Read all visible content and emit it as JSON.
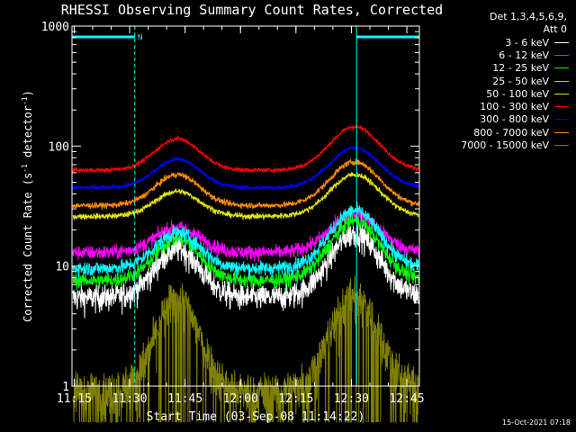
{
  "chart_data": {
    "type": "line",
    "title": "RHESSI Observing Summary Count Rates, Corrected",
    "xlabel": "Start Time (03-Sep-08 11:14:22)",
    "ylabel_main": "Corrected Count Rate (s",
    "ylabel_exp1": "-1",
    "ylabel_mid": " detector",
    "ylabel_exp2": "-1",
    "ylabel_end": ")",
    "ylog": true,
    "ylim": [
      1,
      1000
    ],
    "xlim_min": [
      0,
      94
    ],
    "x_ticks": [
      {
        "min": 0.6,
        "label": "11:15"
      },
      {
        "min": 15.6,
        "label": "11:30"
      },
      {
        "min": 30.6,
        "label": "11:45"
      },
      {
        "min": 45.6,
        "label": "12:00"
      },
      {
        "min": 60.6,
        "label": "12:15"
      },
      {
        "min": 75.6,
        "label": "12:30"
      },
      {
        "min": 90.6,
        "label": "12:45"
      }
    ],
    "y_ticks": [
      {
        "value": 1,
        "label": "1"
      },
      {
        "value": 10,
        "label": "10"
      },
      {
        "value": 100,
        "label": "100"
      },
      {
        "value": 1000,
        "label": "1000"
      }
    ],
    "night_marker": "N",
    "night_bars": [
      [
        0,
        17
      ],
      [
        77,
        94
      ]
    ],
    "night_edges": [
      0,
      17,
      77,
      94
    ],
    "orbit_peaks_min": [
      28.5,
      76.5
    ],
    "series": [
      {
        "name": "3 - 6 keV",
        "color": "#ffffff",
        "base": 5.5,
        "peak1": 14,
        "peak2": 19,
        "noise": 0.09
      },
      {
        "name": "6 - 12 keV",
        "color": "#ff00ff",
        "base": 13,
        "peak1": 21,
        "peak2": 27,
        "noise": 0.05
      },
      {
        "name": "12 - 25 keV",
        "color": "#00ff00",
        "base": 7.6,
        "peak1": 17,
        "peak2": 24,
        "noise": 0.05
      },
      {
        "name": "25 - 50 keV",
        "color": "#00ffff",
        "base": 9.6,
        "peak1": 19,
        "peak2": 29,
        "noise": 0.05
      },
      {
        "name": "50 - 100 keV",
        "color": "#e6e600",
        "base": 26,
        "peak1": 42,
        "peak2": 58,
        "noise": 0.02
      },
      {
        "name": "100 - 300 keV",
        "color": "#ff0000",
        "base": 63,
        "peak1": 115,
        "peak2": 145,
        "noise": 0.015
      },
      {
        "name": "300 - 800 keV",
        "color": "#0000ff",
        "base": 45,
        "peak1": 78,
        "peak2": 97,
        "noise": 0.015
      },
      {
        "name": "800 - 7000 keV",
        "color": "#ff8c00",
        "base": 32,
        "peak1": 58,
        "peak2": 74,
        "noise": 0.02
      },
      {
        "name": "7000 - 15000 keV",
        "color": "#808000",
        "base": 0.9,
        "peak1": 5.4,
        "peak2": 5.6,
        "noise": 0.15
      }
    ],
    "legend_title_1": "Det 1,3,4,5,6,9,",
    "legend_title_2": "Att 0",
    "legend_position": "top-right",
    "grid": false
  },
  "footer_timestamp": "15-Oct-2021 07:18"
}
